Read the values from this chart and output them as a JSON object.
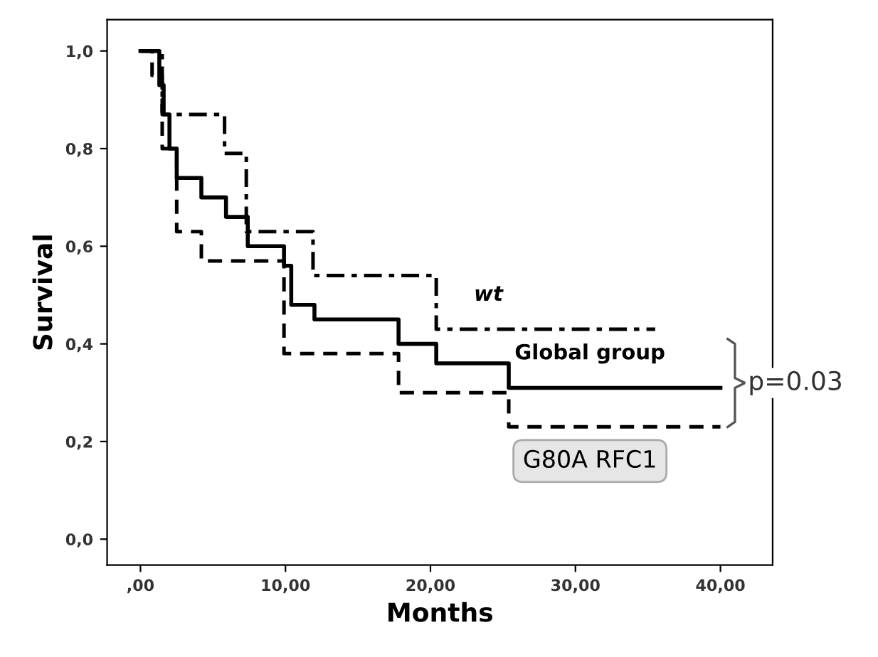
{
  "chart_data": {
    "type": "step",
    "xlabel": "Months",
    "ylabel": "Survival",
    "xlim": [
      -2.3,
      43.6
    ],
    "ylim": [
      -0.053,
      1.064
    ],
    "xticks": [
      {
        "value": 0,
        "label": ",00"
      },
      {
        "value": 10,
        "label": "10,00"
      },
      {
        "value": 20,
        "label": "20,00"
      },
      {
        "value": 30,
        "label": "30,00"
      },
      {
        "value": 40,
        "label": "40,00"
      }
    ],
    "yticks": [
      {
        "value": 0,
        "label": "0,0"
      },
      {
        "value": 0.2,
        "label": "0,2"
      },
      {
        "value": 0.4,
        "label": "0,4"
      },
      {
        "value": 0.6,
        "label": "0,6"
      },
      {
        "value": 0.8,
        "label": "0,8"
      },
      {
        "value": 1.0,
        "label": "1,0"
      }
    ],
    "grid": false,
    "legend": false,
    "series": [
      {
        "name": "wt",
        "color": "#000000",
        "line_style": "dashdot",
        "x": [
          0,
          1.5,
          5.8,
          7.3,
          11.9,
          20.4,
          35.5
        ],
        "values": [
          1,
          0.87,
          0.79,
          0.63,
          0.54,
          0.43,
          0.43
        ]
      },
      {
        "name": "Global group",
        "color": "#000000",
        "line_style": "solid",
        "x": [
          0,
          1.3,
          1.6,
          2.0,
          2.5,
          4.2,
          5.9,
          7.4,
          9.9,
          10.4,
          12.0,
          17.8,
          20.4,
          25.4,
          40
        ],
        "values": [
          1,
          0.93,
          0.87,
          0.8,
          0.74,
          0.7,
          0.66,
          0.6,
          0.56,
          0.48,
          0.45,
          0.4,
          0.36,
          0.31,
          0.31
        ]
      },
      {
        "name": "G80A RFC1",
        "color": "#000000",
        "line_style": "dashed",
        "x": [
          0,
          0.8,
          1.5,
          2.5,
          4.2,
          9.9,
          17.8,
          25.4,
          40
        ],
        "values": [
          1,
          0.95,
          0.8,
          0.63,
          0.57,
          0.38,
          0.3,
          0.23,
          0.23
        ]
      }
    ],
    "annotations": [
      "p=0.03"
    ]
  }
}
